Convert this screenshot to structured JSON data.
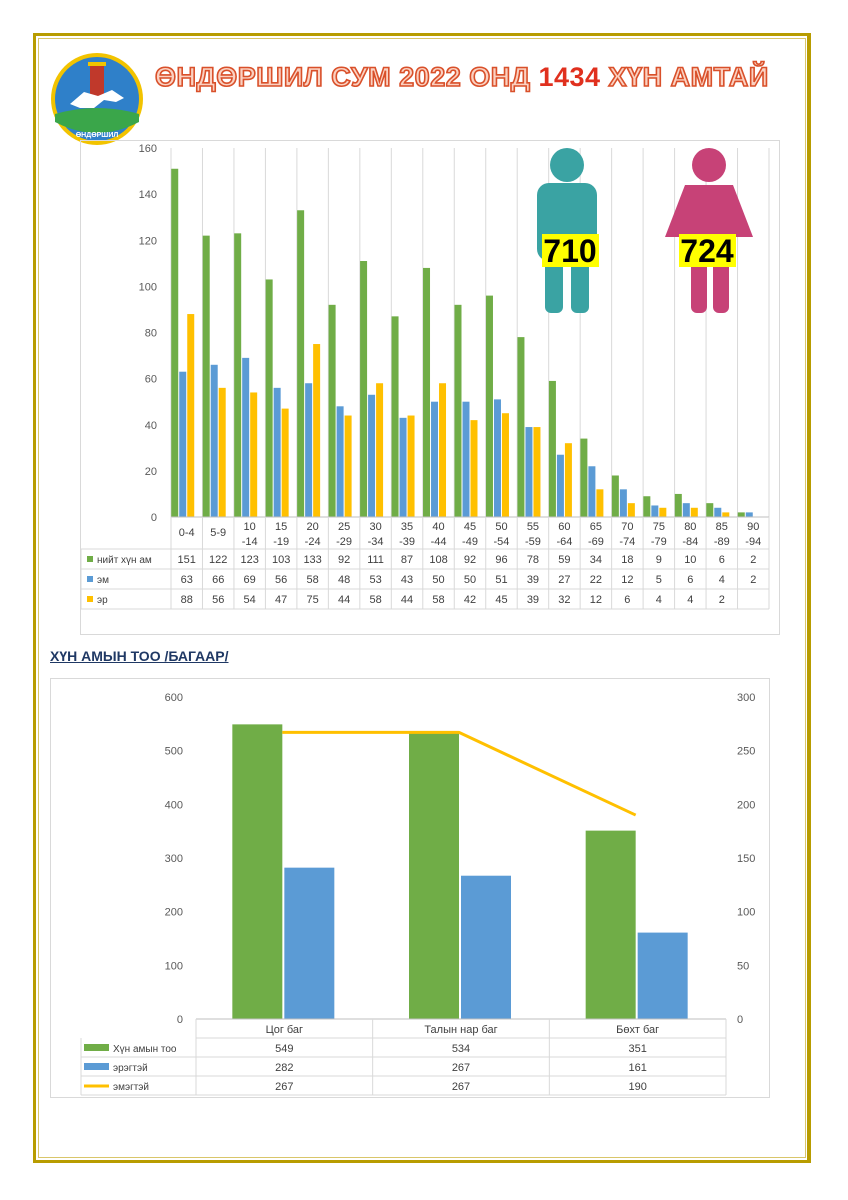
{
  "page_title_part1": "ӨНДӨРШИЛ СУМ 2022 ОНД ",
  "page_title_highlight": "1434",
  "page_title_part2": " ХҮН АМТАЙ",
  "logo_text": "ӨНДӨРШИЛ",
  "male_count": "710",
  "female_count": "724",
  "section_title": "ХҮН АМЫН ТОО /БАГААР/",
  "colors": {
    "total": "#70ad47",
    "female": "#5b9bd5",
    "male": "#ffc000",
    "male_icon": "#3aa3a3",
    "female_icon": "#c74277"
  },
  "chart_data": [
    {
      "type": "bar",
      "categories": [
        "0-4",
        "5-9",
        "10 -14",
        "15 -19",
        "20 -24",
        "25 -29",
        "30 -34",
        "35 -39",
        "40 -44",
        "45 -49",
        "50 -54",
        "55 -59",
        "60 -64",
        "65 -69",
        "70 -74",
        "75 -79",
        "80 -84",
        "85 -89",
        "90 -94"
      ],
      "series": [
        {
          "name": "нийт хүн ам",
          "values": [
            151,
            122,
            123,
            103,
            133,
            92,
            111,
            87,
            108,
            92,
            96,
            78,
            59,
            34,
            18,
            9,
            10,
            6,
            2
          ]
        },
        {
          "name": "эм",
          "values": [
            63,
            66,
            69,
            56,
            58,
            48,
            53,
            43,
            50,
            50,
            51,
            39,
            27,
            22,
            12,
            5,
            6,
            4,
            2
          ]
        },
        {
          "name": "эр",
          "values": [
            88,
            56,
            54,
            47,
            75,
            44,
            58,
            44,
            58,
            42,
            45,
            39,
            32,
            12,
            6,
            4,
            4,
            2,
            null
          ]
        }
      ],
      "ylim": [
        0,
        160
      ],
      "yticks": [
        0,
        20,
        40,
        60,
        80,
        100,
        120,
        140,
        160
      ],
      "grid": "vertical"
    },
    {
      "type": "bar",
      "categories": [
        "Цог баг",
        "Талын нар баг",
        "Бөхт баг"
      ],
      "series": [
        {
          "name": "Хүн амын тоо",
          "type": "bar",
          "axis": "left",
          "values": [
            549,
            534,
            351
          ]
        },
        {
          "name": "эрэгтэй",
          "type": "bar",
          "axis": "left",
          "values": [
            282,
            267,
            161
          ]
        },
        {
          "name": "эмэгтэй",
          "type": "line",
          "axis": "right",
          "values": [
            267,
            267,
            190
          ]
        }
      ],
      "ylim_left": [
        0,
        600
      ],
      "ylim_right": [
        0,
        300
      ],
      "yticks_left": [
        0,
        100,
        200,
        300,
        400,
        500,
        600
      ],
      "yticks_right": [
        0,
        50,
        100,
        150,
        200,
        250,
        300
      ]
    }
  ]
}
